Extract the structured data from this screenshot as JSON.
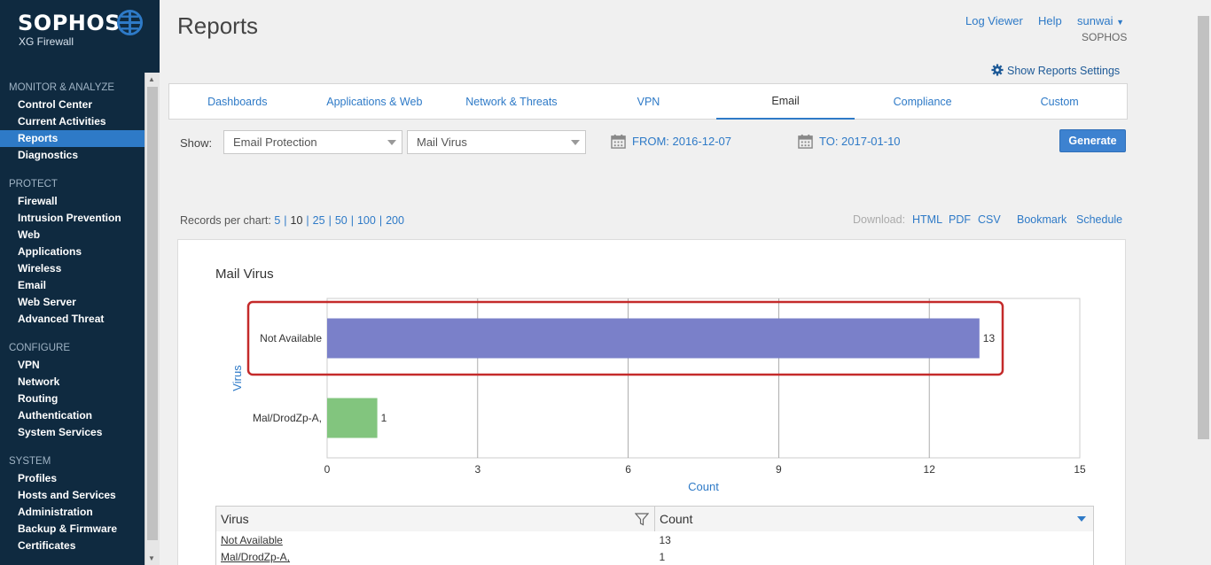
{
  "brand": {
    "name": "SOPHOS",
    "product": "XG Firewall"
  },
  "sidebar": {
    "sections": [
      {
        "title": "MONITOR & ANALYZE",
        "items": [
          "Control Center",
          "Current Activities",
          "Reports",
          "Diagnostics"
        ]
      },
      {
        "title": "PROTECT",
        "items": [
          "Firewall",
          "Intrusion Prevention",
          "Web",
          "Applications",
          "Wireless",
          "Email",
          "Web Server",
          "Advanced Threat"
        ]
      },
      {
        "title": "CONFIGURE",
        "items": [
          "VPN",
          "Network",
          "Routing",
          "Authentication",
          "System Services"
        ]
      },
      {
        "title": "SYSTEM",
        "items": [
          "Profiles",
          "Hosts and Services",
          "Administration",
          "Backup & Firmware",
          "Certificates"
        ]
      }
    ],
    "active_item": "Reports"
  },
  "header": {
    "title": "Reports",
    "log_viewer": "Log Viewer",
    "help": "Help",
    "user": "sunwai",
    "org": "SOPHOS",
    "settings_link": "Show Reports Settings"
  },
  "tabs": [
    "Dashboards",
    "Applications & Web",
    "Network & Threats",
    "VPN",
    "Email",
    "Compliance",
    "Custom"
  ],
  "active_tab": "Email",
  "filters": {
    "show_label": "Show:",
    "select1": "Email Protection",
    "select2": "Mail Virus",
    "from": "FROM: 2016-12-07",
    "to": "TO: 2017-01-10",
    "generate": "Generate"
  },
  "records": {
    "label": "Records per chart:",
    "options": [
      "5",
      "10",
      "25",
      "50",
      "100",
      "200"
    ],
    "selected": "10"
  },
  "download": {
    "label": "Download:",
    "html": "HTML",
    "pdf": "PDF",
    "csv": "CSV",
    "bookmark": "Bookmark",
    "schedule": "Schedule"
  },
  "chart_data": {
    "type": "bar",
    "orientation": "horizontal",
    "title": "Mail Virus",
    "xlabel": "Count",
    "ylabel": "Virus",
    "categories": [
      "Not Available",
      "Mal/DrodZp-A,"
    ],
    "values": [
      13,
      1
    ],
    "xlim": [
      0,
      15
    ],
    "xticks": [
      0,
      3,
      6,
      9,
      12,
      15
    ],
    "grid": true,
    "colors": [
      "#7a80c9",
      "#82c57e"
    ]
  },
  "table": {
    "headers": [
      "Virus",
      "Count"
    ],
    "rows": [
      [
        "Not Available",
        "13"
      ],
      [
        "Mal/DrodZp-A,",
        "1"
      ]
    ]
  },
  "colors": {
    "sidebar_bg": "#0f2a40",
    "accent": "#2e7ac7",
    "highlight_border": "#c42a2a"
  }
}
